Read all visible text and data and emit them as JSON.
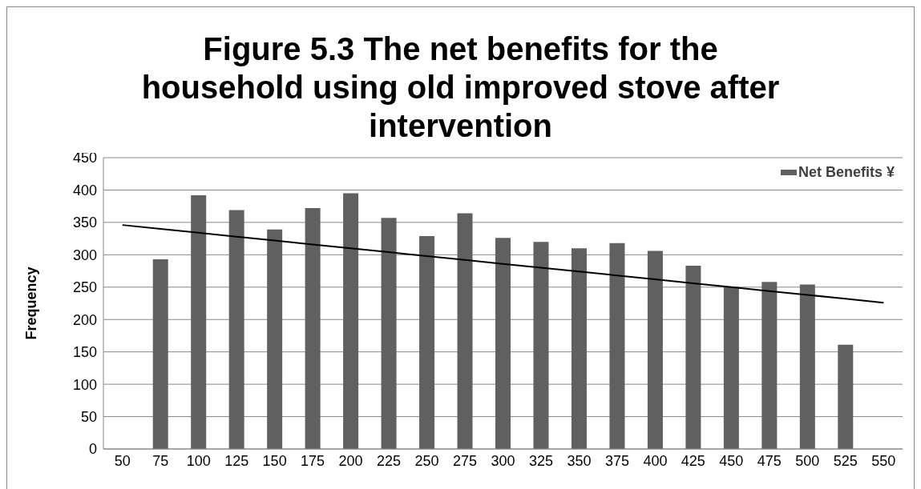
{
  "chart_data": {
    "type": "bar",
    "title": "Figure 5.3 The net benefits for the household using old improved stove after intervention",
    "ylabel": "Frequency",
    "categories": [
      "50",
      "75",
      "100",
      "125",
      "150",
      "175",
      "200",
      "225",
      "250",
      "275",
      "300",
      "325",
      "350",
      "375",
      "400",
      "425",
      "450",
      "475",
      "500",
      "525",
      "550"
    ],
    "series": [
      {
        "name": "Net Benefits ¥",
        "color": "#606060",
        "values": [
          0,
          293,
          392,
          369,
          339,
          372,
          395,
          357,
          329,
          364,
          326,
          320,
          310,
          318,
          306,
          283,
          250,
          258,
          254,
          161,
          null
        ]
      },
      {
        "type": "line",
        "color": "#000000",
        "values": [
          346,
          340,
          334,
          328,
          322,
          316,
          310,
          304,
          298,
          292,
          286,
          280,
          274,
          268,
          262,
          256,
          250,
          244,
          238,
          232,
          226
        ]
      }
    ],
    "ylim": [
      0,
      450
    ],
    "yticks": [
      0,
      50,
      100,
      150,
      200,
      250,
      300,
      350,
      400,
      450
    ],
    "grid": "y",
    "legend": "top right",
    "marker": "none",
    "line_style": "solid"
  }
}
